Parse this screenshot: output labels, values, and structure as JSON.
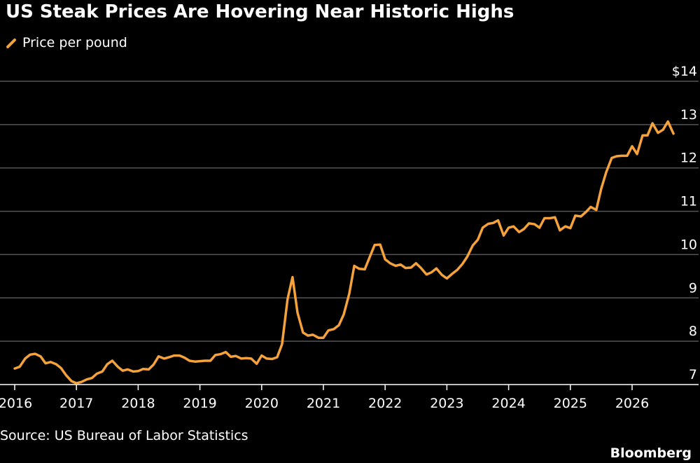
{
  "header": {
    "title": "US Steak Prices Are Hovering Near Historic Highs"
  },
  "legend": {
    "label": "Price per pound"
  },
  "footer": {
    "source": "Source: US Bureau of Labor Statistics",
    "brand": "Bloomberg"
  },
  "colors": {
    "line": "#f5a23d",
    "grid": "#555555",
    "background": "#000000"
  },
  "chart_data": {
    "type": "line",
    "ylim": [
      7,
      14
    ],
    "xlim": [
      2016,
      2026.92
    ],
    "y_ticks": [
      7,
      8,
      9,
      10,
      11,
      12,
      13,
      14
    ],
    "y_tick_labels": [
      "7",
      "8",
      "9",
      "10",
      "11",
      "12",
      "13",
      "$14"
    ],
    "x_ticks": [
      2016,
      2017,
      2018,
      2019,
      2020,
      2021,
      2022,
      2023,
      2024,
      2025,
      2026
    ],
    "x_tick_labels": [
      "2016",
      "2017",
      "2018",
      "2019",
      "2020",
      "2021",
      "2022",
      "2023",
      "2024",
      "2025",
      "2026"
    ],
    "grid": true,
    "legend_position": "top-left",
    "series": [
      {
        "name": "Price per pound",
        "points": [
          [
            2016.0,
            7.37
          ],
          [
            2016.08,
            7.41
          ],
          [
            2016.17,
            7.6
          ],
          [
            2016.25,
            7.69
          ],
          [
            2016.33,
            7.71
          ],
          [
            2016.42,
            7.65
          ],
          [
            2016.5,
            7.49
          ],
          [
            2016.58,
            7.52
          ],
          [
            2016.67,
            7.47
          ],
          [
            2016.75,
            7.38
          ],
          [
            2016.83,
            7.22
          ],
          [
            2016.92,
            7.08
          ],
          [
            2017.0,
            7.03
          ],
          [
            2017.08,
            7.06
          ],
          [
            2017.17,
            7.12
          ],
          [
            2017.25,
            7.15
          ],
          [
            2017.33,
            7.25
          ],
          [
            2017.42,
            7.3
          ],
          [
            2017.5,
            7.47
          ],
          [
            2017.58,
            7.55
          ],
          [
            2017.67,
            7.41
          ],
          [
            2017.75,
            7.32
          ],
          [
            2017.83,
            7.35
          ],
          [
            2017.92,
            7.3
          ],
          [
            2018.0,
            7.31
          ],
          [
            2018.08,
            7.36
          ],
          [
            2018.17,
            7.35
          ],
          [
            2018.25,
            7.46
          ],
          [
            2018.33,
            7.65
          ],
          [
            2018.42,
            7.6
          ],
          [
            2018.5,
            7.63
          ],
          [
            2018.58,
            7.67
          ],
          [
            2018.67,
            7.67
          ],
          [
            2018.75,
            7.62
          ],
          [
            2018.83,
            7.55
          ],
          [
            2018.92,
            7.53
          ],
          [
            2019.0,
            7.54
          ],
          [
            2019.08,
            7.55
          ],
          [
            2019.17,
            7.55
          ],
          [
            2019.25,
            7.68
          ],
          [
            2019.33,
            7.7
          ],
          [
            2019.42,
            7.75
          ],
          [
            2019.5,
            7.64
          ],
          [
            2019.58,
            7.66
          ],
          [
            2019.67,
            7.6
          ],
          [
            2019.75,
            7.61
          ],
          [
            2019.83,
            7.6
          ],
          [
            2019.92,
            7.48
          ],
          [
            2020.0,
            7.67
          ],
          [
            2020.08,
            7.6
          ],
          [
            2020.17,
            7.59
          ],
          [
            2020.25,
            7.63
          ],
          [
            2020.33,
            7.93
          ],
          [
            2020.42,
            8.97
          ],
          [
            2020.5,
            9.48
          ],
          [
            2020.58,
            8.66
          ],
          [
            2020.67,
            8.2
          ],
          [
            2020.75,
            8.13
          ],
          [
            2020.83,
            8.15
          ],
          [
            2020.92,
            8.08
          ],
          [
            2021.0,
            8.08
          ],
          [
            2021.08,
            8.25
          ],
          [
            2021.17,
            8.28
          ],
          [
            2021.25,
            8.37
          ],
          [
            2021.33,
            8.62
          ],
          [
            2021.42,
            9.1
          ],
          [
            2021.5,
            9.74
          ],
          [
            2021.58,
            9.67
          ],
          [
            2021.67,
            9.66
          ],
          [
            2021.75,
            9.94
          ],
          [
            2021.83,
            10.22
          ],
          [
            2021.92,
            10.23
          ],
          [
            2022.0,
            9.89
          ],
          [
            2022.08,
            9.8
          ],
          [
            2022.17,
            9.74
          ],
          [
            2022.25,
            9.77
          ],
          [
            2022.33,
            9.69
          ],
          [
            2022.42,
            9.7
          ],
          [
            2022.5,
            9.8
          ],
          [
            2022.58,
            9.69
          ],
          [
            2022.67,
            9.54
          ],
          [
            2022.75,
            9.59
          ],
          [
            2022.83,
            9.68
          ],
          [
            2022.92,
            9.53
          ],
          [
            2023.0,
            9.45
          ],
          [
            2023.08,
            9.55
          ],
          [
            2023.17,
            9.65
          ],
          [
            2023.25,
            9.78
          ],
          [
            2023.33,
            9.95
          ],
          [
            2023.42,
            10.21
          ],
          [
            2023.5,
            10.34
          ],
          [
            2023.58,
            10.62
          ],
          [
            2023.67,
            10.71
          ],
          [
            2023.75,
            10.73
          ],
          [
            2023.83,
            10.79
          ],
          [
            2023.92,
            10.44
          ],
          [
            2024.0,
            10.62
          ],
          [
            2024.08,
            10.65
          ],
          [
            2024.17,
            10.52
          ],
          [
            2024.25,
            10.59
          ],
          [
            2024.33,
            10.72
          ],
          [
            2024.42,
            10.7
          ],
          [
            2024.5,
            10.62
          ],
          [
            2024.58,
            10.84
          ],
          [
            2024.67,
            10.84
          ],
          [
            2024.75,
            10.86
          ],
          [
            2024.83,
            10.56
          ],
          [
            2024.92,
            10.65
          ],
          [
            2025.0,
            10.61
          ],
          [
            2025.08,
            10.9
          ],
          [
            2025.17,
            10.88
          ],
          [
            2025.25,
            10.98
          ],
          [
            2025.33,
            11.1
          ],
          [
            2025.42,
            11.03
          ],
          [
            2025.5,
            11.52
          ],
          [
            2025.58,
            11.9
          ],
          [
            2025.67,
            12.23
          ],
          [
            2025.75,
            12.27
          ],
          [
            2025.83,
            12.28
          ],
          [
            2025.92,
            12.28
          ],
          [
            2026.0,
            12.5
          ],
          [
            2026.08,
            12.32
          ],
          [
            2026.17,
            12.75
          ],
          [
            2026.25,
            12.75
          ],
          [
            2026.33,
            13.03
          ],
          [
            2026.42,
            12.81
          ],
          [
            2026.5,
            12.88
          ],
          [
            2026.58,
            13.07
          ],
          [
            2026.67,
            12.79
          ]
        ]
      }
    ]
  }
}
